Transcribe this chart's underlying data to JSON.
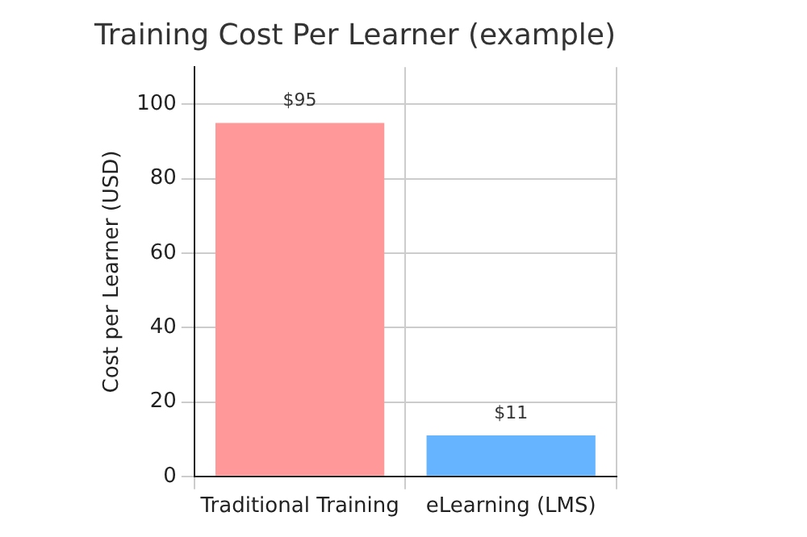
{
  "chart_data": {
    "type": "bar",
    "title": "Training Cost Per Learner (example)",
    "ylabel": "Cost per Learner (USD)",
    "categories": [
      "Traditional Training",
      "eLearning (LMS)"
    ],
    "values": [
      95,
      11
    ],
    "colors": [
      "#ff9999",
      "#66b3ff"
    ],
    "value_labels": [
      "$95",
      "$11"
    ],
    "ylim": [
      0,
      110
    ],
    "yticks": [
      0,
      20,
      40,
      60,
      80,
      100
    ],
    "grid": true
  }
}
